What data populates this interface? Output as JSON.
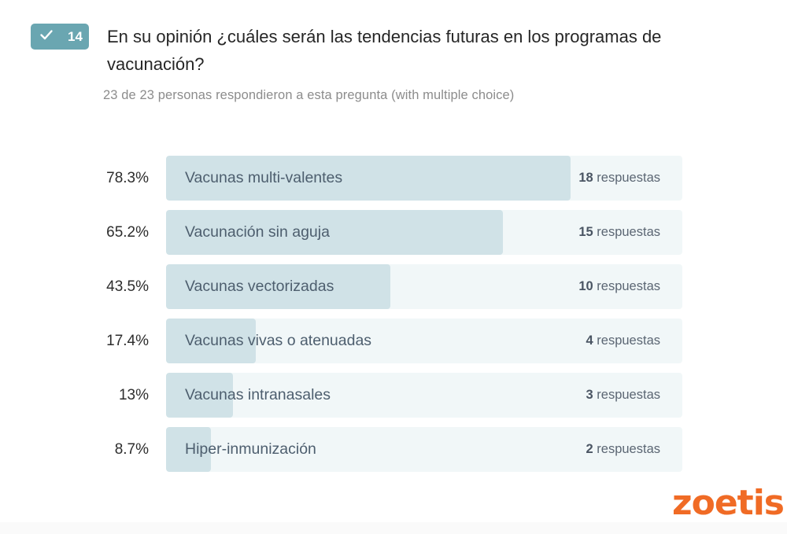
{
  "question": {
    "number": "14",
    "badge_icon": "check-icon",
    "title": "En su opinión ¿cuáles serán las tendencias futuras en los programas de vacunación?",
    "subtitle": "23 de 23 personas respondieron a esta pregunta (with multiple choice)"
  },
  "colors": {
    "badge": "#6aa6b1",
    "bar_fill": "#d0e2e7",
    "bar_track": "#f1f7f8",
    "logo": "#f06b25"
  },
  "chart_data": {
    "type": "bar",
    "orientation": "horizontal",
    "title": "En su opinión ¿cuáles serán las tendencias futuras en los programas de vacunación?",
    "total_respondents": 23,
    "xlim": [
      0,
      100
    ],
    "unit": "%",
    "count_suffix": "respuestas",
    "categories": [
      "Vacunas multi-valentes",
      "Vacunación sin aguja",
      "Vacunas vectorizadas",
      "Vacunas vivas o atenuadas",
      "Vacunas intranasales",
      "Hiper-inmunización"
    ],
    "values": [
      78.3,
      65.2,
      43.5,
      17.4,
      13,
      8.7
    ],
    "percent_labels": [
      "78.3%",
      "65.2%",
      "43.5%",
      "17.4%",
      "13%",
      "8.7%"
    ],
    "counts": [
      18,
      15,
      10,
      4,
      3,
      2
    ]
  },
  "brand": {
    "logo_text": "zoetis"
  }
}
